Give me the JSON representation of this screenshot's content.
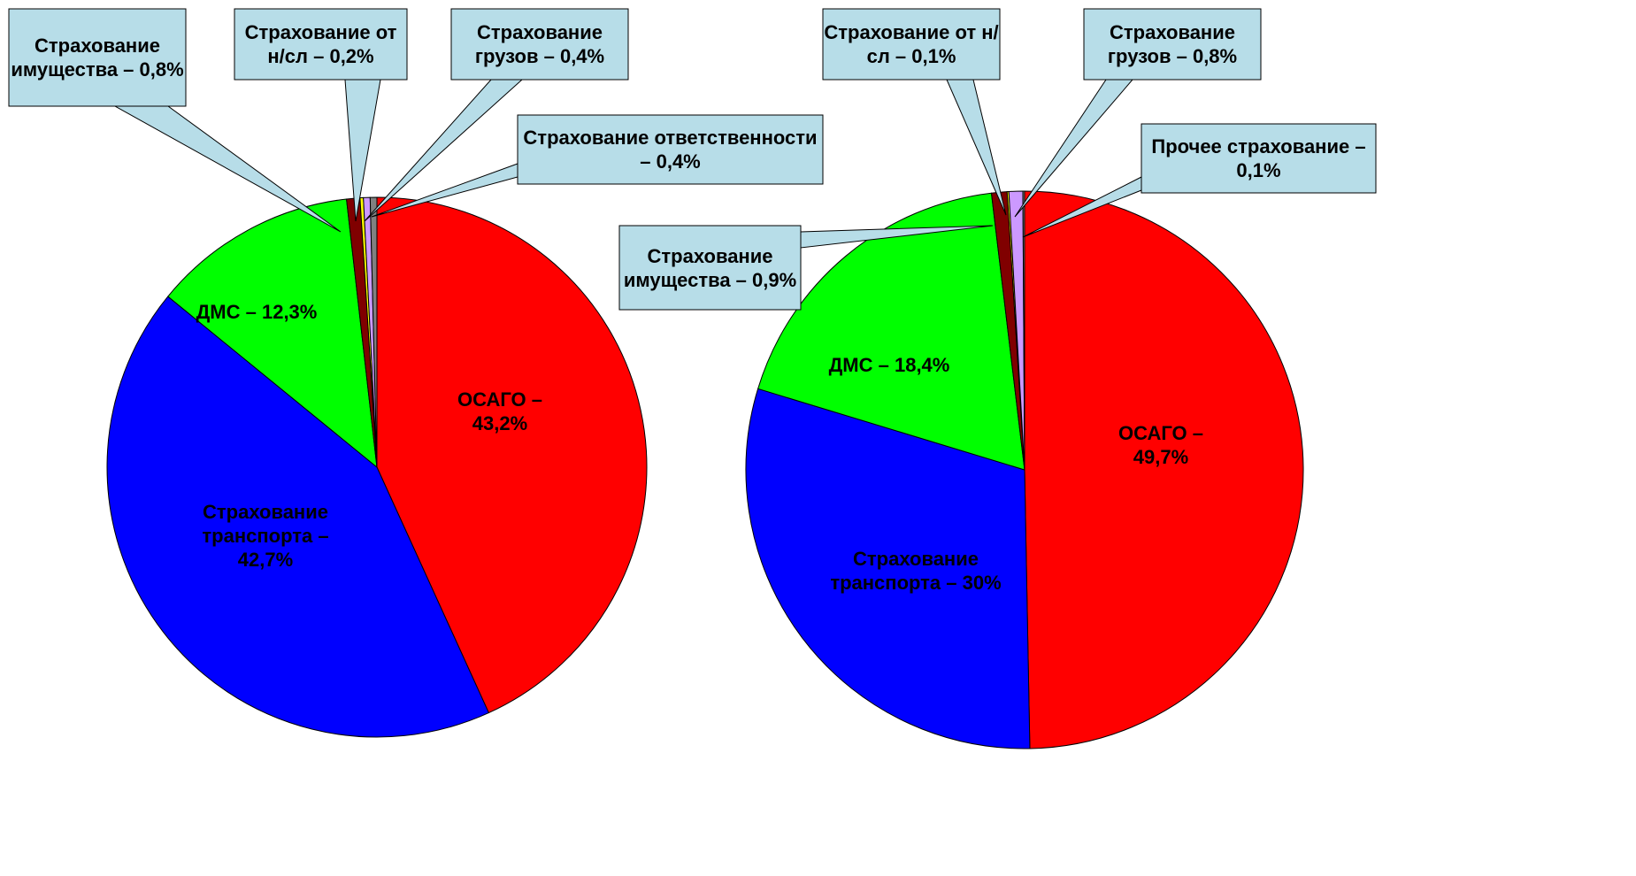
{
  "chart_data": [
    {
      "type": "pie",
      "values": [
        43.2,
        42.7,
        12.3,
        0.8,
        0.2,
        0.4,
        0.4
      ],
      "value_labels": [
        "ОСАГО – 43,2%",
        "Страхование транспорта – 42,7%",
        "ДМС – 12,3%",
        "Страхование имущества – 0,8%",
        "Страхование от н/сл – 0,2%",
        "Страхование грузов – 0,4%",
        "Страхование ответственности – 0,4%"
      ],
      "colors": [
        "#ff0000",
        "#0000ff",
        "#00ff00",
        "#800000",
        "#ffff00",
        "#cc99ff",
        "#808080"
      ]
    },
    {
      "type": "pie",
      "values": [
        49.7,
        30,
        18.4,
        0.9,
        0.1,
        0.8,
        0.1
      ],
      "value_labels": [
        "ОСАГО – 49,7%",
        "Страхование транспорта – 30%",
        "ДМС – 18,4%",
        "Страхование имущества – 0,9%",
        "Страхование от н/сл – 0,1%",
        "Страхование грузов – 0,8%",
        "Прочее страхование – 0,1%"
      ],
      "colors": [
        "#ff0000",
        "#0000ff",
        "#00ff00",
        "#800000",
        "#ffff00",
        "#cc99ff",
        "#808080"
      ]
    }
  ]
}
